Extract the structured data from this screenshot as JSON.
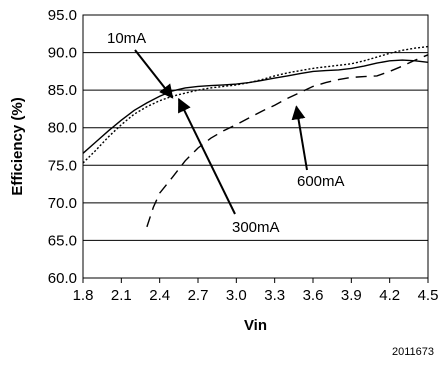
{
  "chart_data": {
    "type": "line",
    "xlabel": "Vin",
    "ylabel": "Efficiency (%)",
    "xlim": [
      1.8,
      4.5
    ],
    "ylim": [
      60.0,
      95.0
    ],
    "x_ticks": [
      "1.8",
      "2.1",
      "2.4",
      "2.7",
      "3.0",
      "3.3",
      "3.6",
      "3.9",
      "4.2",
      "4.5"
    ],
    "y_ticks": [
      "60.0",
      "65.0",
      "70.0",
      "75.0",
      "80.0",
      "85.0",
      "90.0",
      "95.0"
    ],
    "grid": "horizontal",
    "series": [
      {
        "name": "10mA",
        "style": "dotted",
        "x": [
          1.8,
          1.9,
          2.0,
          2.1,
          2.2,
          2.3,
          2.4,
          2.5,
          2.6,
          2.7,
          2.8,
          2.9,
          3.0,
          3.1,
          3.2,
          3.3,
          3.4,
          3.5,
          3.6,
          3.7,
          3.8,
          3.9,
          4.0,
          4.1,
          4.2,
          4.3,
          4.4,
          4.5
        ],
        "y": [
          75.3,
          77.0,
          78.8,
          80.4,
          81.8,
          82.8,
          83.6,
          84.2,
          84.6,
          85.0,
          85.3,
          85.5,
          85.7,
          86.0,
          86.4,
          86.9,
          87.3,
          87.6,
          87.9,
          88.1,
          88.3,
          88.5,
          88.9,
          89.4,
          89.9,
          90.3,
          90.6,
          90.8
        ]
      },
      {
        "name": "300mA",
        "style": "solid",
        "x": [
          1.8,
          1.9,
          2.0,
          2.1,
          2.2,
          2.3,
          2.4,
          2.5,
          2.6,
          2.7,
          2.8,
          2.9,
          3.0,
          3.1,
          3.2,
          3.3,
          3.4,
          3.5,
          3.6,
          3.7,
          3.8,
          3.9,
          4.0,
          4.1,
          4.2,
          4.3,
          4.4,
          4.5
        ],
        "y": [
          76.6,
          78.1,
          79.6,
          81.0,
          82.3,
          83.3,
          84.2,
          84.9,
          85.3,
          85.5,
          85.6,
          85.7,
          85.8,
          86.0,
          86.3,
          86.6,
          86.9,
          87.2,
          87.5,
          87.6,
          87.7,
          87.9,
          88.2,
          88.6,
          88.9,
          89.0,
          88.9,
          88.7
        ]
      },
      {
        "name": "600mA",
        "style": "dashed",
        "x": [
          2.3,
          2.35,
          2.4,
          2.5,
          2.6,
          2.7,
          2.8,
          2.9,
          3.0,
          3.1,
          3.2,
          3.3,
          3.4,
          3.5,
          3.6,
          3.7,
          3.8,
          3.9,
          4.0,
          4.1,
          4.2,
          4.3,
          4.4,
          4.5
        ],
        "y": [
          66.8,
          69.4,
          71.3,
          73.4,
          75.6,
          77.3,
          78.6,
          79.6,
          80.4,
          81.3,
          82.2,
          83.0,
          83.9,
          84.7,
          85.5,
          86.0,
          86.4,
          86.7,
          86.8,
          86.9,
          87.5,
          88.2,
          89.0,
          89.7
        ]
      }
    ],
    "annotations": [
      {
        "text": "10mA",
        "series": "10mA",
        "x": 2.5,
        "y": 84.0
      },
      {
        "text": "300mA",
        "series": "300mA",
        "x": 2.55,
        "y": 83.8
      },
      {
        "text": "600mA",
        "series": "600mA",
        "x": 3.47,
        "y": 82.8
      }
    ]
  },
  "figure_id": "2011673"
}
